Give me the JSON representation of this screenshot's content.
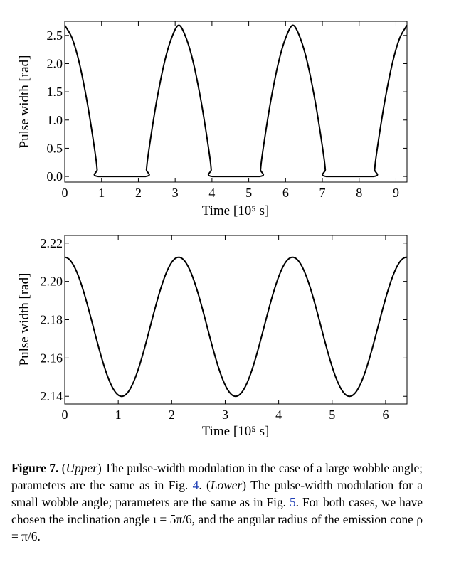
{
  "chart_data": [
    {
      "type": "line",
      "name": "Upper",
      "xlabel": "Time [10⁵ s]",
      "ylabel": "Pulse width [rad]",
      "xlim": [
        0,
        9.3
      ],
      "ylim": [
        -0.1,
        2.75
      ],
      "xticks": [
        0,
        1,
        2,
        3,
        4,
        5,
        6,
        7,
        8,
        9
      ],
      "yticks": [
        0.0,
        0.5,
        1.0,
        1.5,
        2.0,
        2.5
      ],
      "ytick_labels": [
        "0.0",
        "0.5",
        "1.0",
        "1.5",
        "2.0",
        "2.5"
      ],
      "series": [
        {
          "x": [
            0.0,
            0.2,
            0.4,
            0.6,
            0.75,
            0.85,
            0.88,
            0.9,
            2.2,
            2.22,
            2.25,
            2.35,
            2.5,
            2.7,
            2.9,
            3.1,
            3.3,
            3.5,
            3.7,
            3.85,
            3.95,
            3.98,
            4.0,
            5.3,
            5.32,
            5.35,
            5.45,
            5.6,
            5.8,
            6.0,
            6.2,
            6.4,
            6.6,
            6.8,
            6.95,
            7.05,
            7.08,
            7.1,
            8.4,
            8.42,
            8.45,
            8.55,
            8.7,
            8.9,
            9.1,
            9.3
          ],
          "y": [
            2.68,
            2.45,
            2.0,
            1.35,
            0.75,
            0.3,
            0.12,
            0.0,
            0.0,
            0.12,
            0.3,
            0.75,
            1.35,
            2.0,
            2.45,
            2.68,
            2.45,
            2.0,
            1.35,
            0.75,
            0.3,
            0.12,
            0.0,
            0.0,
            0.12,
            0.3,
            0.75,
            1.35,
            2.0,
            2.45,
            2.68,
            2.45,
            2.0,
            1.35,
            0.75,
            0.3,
            0.12,
            0.0,
            0.0,
            0.12,
            0.3,
            0.75,
            1.35,
            2.0,
            2.45,
            2.68
          ]
        }
      ],
      "grid": false
    },
    {
      "type": "line",
      "name": "Lower",
      "xlabel": "Time [10⁵ s]",
      "ylabel": "Pulse width [rad]",
      "xlim": [
        0,
        6.4
      ],
      "ylim": [
        2.136,
        2.224
      ],
      "xticks": [
        0,
        1,
        2,
        3,
        4,
        5,
        6
      ],
      "yticks": [
        2.14,
        2.16,
        2.18,
        2.2,
        2.22
      ],
      "ytick_labels": [
        "2.14",
        "2.16",
        "2.18",
        "2.20",
        "2.22"
      ],
      "series": [
        {
          "mean": 2.1763,
          "amplitude": 0.0363,
          "period": 2.13,
          "x": [
            0.0,
            0.53,
            1.065,
            1.6,
            2.13,
            2.66,
            3.195,
            3.73,
            4.26,
            4.79,
            5.325,
            5.86,
            6.39
          ],
          "y": [
            2.2126,
            2.1763,
            2.14,
            2.1763,
            2.2126,
            2.1763,
            2.14,
            2.1763,
            2.2126,
            2.1763,
            2.14,
            2.1763,
            2.2126
          ]
        }
      ],
      "grid": false
    }
  ],
  "caption": {
    "label": "Figure 7.",
    "upper": "Upper",
    "text1": " The pulse-width modulation in the case of a large wobble angle; parameters are the same as in Fig. ",
    "ref1": "4",
    "text2": ". (",
    "lower": "Lower",
    "text3": ") The pulse-width modulation for a small wobble angle; parameters are the same as in Fig. ",
    "ref2": "5",
    "text4": ". For both cases, we have chosen the inclination angle ι = 5π/6, and the angular radius of the emission cone ρ = π/6."
  }
}
